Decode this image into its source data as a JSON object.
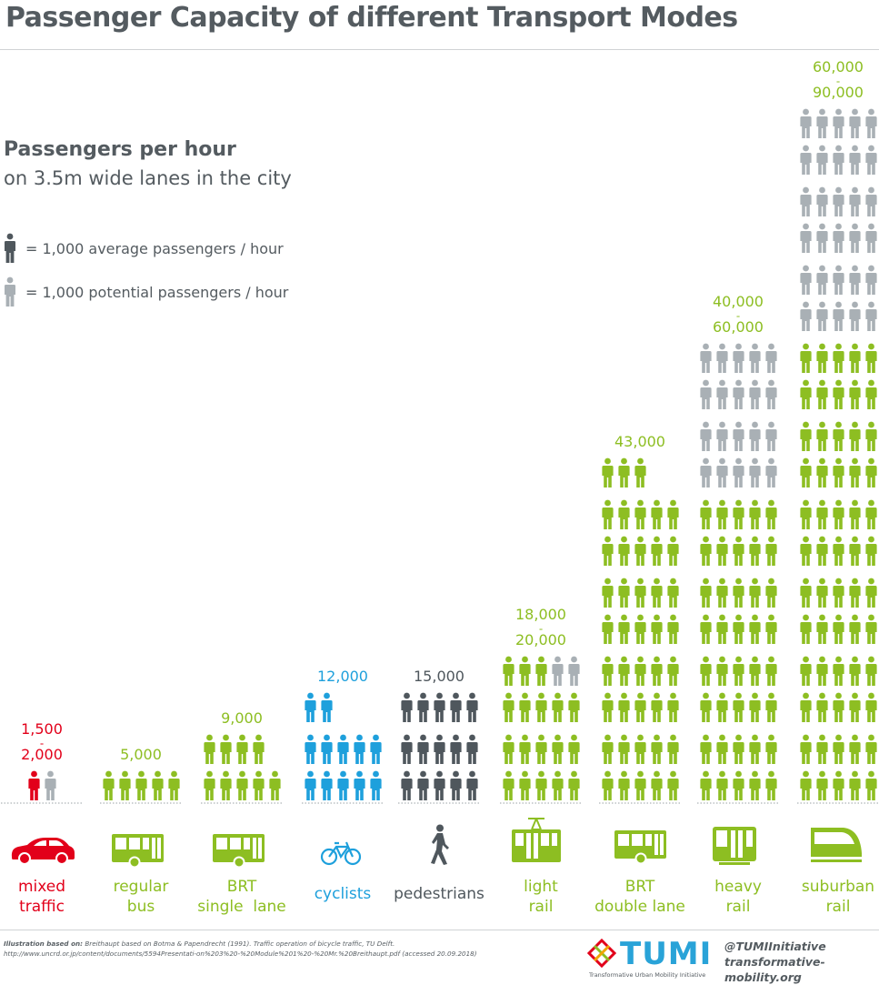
{
  "title": "Passenger Capacity of different Transport Modes",
  "subtitle_bold": "Passengers per hour",
  "subtitle": "on 3.5m wide lanes in the city",
  "legend": {
    "average": "= 1,000 average passengers / hour",
    "potential": "= 1,000 potential passengers / hour"
  },
  "colors": {
    "red": "#e2001a",
    "green": "#8dbe22",
    "blue": "#1ea0dc",
    "dark": "#4f575d",
    "gray": "#a9b0b5"
  },
  "chart_data": {
    "type": "pictogram",
    "unit": "1,000 passengers / hour",
    "categories": [
      {
        "id": "mixed-traffic",
        "label": [
          "mixed",
          "traffic"
        ],
        "value_label": [
          "1,500",
          "-",
          "2,000"
        ],
        "average": 1,
        "potential": 1,
        "color": "red",
        "icon": "car-icon"
      },
      {
        "id": "regular-bus",
        "label": [
          "regular",
          "bus"
        ],
        "value_label": [
          "5,000"
        ],
        "average": 5,
        "potential": 0,
        "color": "green",
        "icon": "bus-icon"
      },
      {
        "id": "brt-single-lane",
        "label": [
          "BRT",
          "single  lane"
        ],
        "value_label": [
          "9,000"
        ],
        "average": 9,
        "potential": 0,
        "color": "green",
        "icon": "bus-icon"
      },
      {
        "id": "cyclists",
        "label": [
          "cyclists"
        ],
        "value_label": [
          "12,000"
        ],
        "average": 12,
        "potential": 0,
        "color": "blue",
        "icon": "bicycle-icon"
      },
      {
        "id": "pedestrians",
        "label": [
          "pedestrians"
        ],
        "value_label": [
          "15,000"
        ],
        "average": 15,
        "potential": 0,
        "color": "dark",
        "icon": "pedestrian-icon"
      },
      {
        "id": "light-rail",
        "label": [
          "light",
          "rail"
        ],
        "value_label": [
          "18,000",
          "-",
          "20,000"
        ],
        "average": 18,
        "potential": 2,
        "color": "green",
        "icon": "tram-icon"
      },
      {
        "id": "brt-double-lane",
        "label": [
          "BRT",
          "double lane"
        ],
        "value_label": [
          "43,000"
        ],
        "average": 43,
        "potential": 0,
        "color": "green",
        "icon": "bus-icon"
      },
      {
        "id": "heavy-rail",
        "label": [
          "heavy",
          "rail"
        ],
        "value_label": [
          "40,000",
          "-",
          "60,000"
        ],
        "average": 40,
        "potential": 20,
        "color": "green",
        "icon": "metro-icon"
      },
      {
        "id": "suburban-rail",
        "label": [
          "suburban",
          "rail"
        ],
        "value_label": [
          "60,000",
          "-",
          "90,000"
        ],
        "average": 60,
        "potential": 30,
        "color": "green",
        "icon": "suburban-train-icon"
      }
    ]
  },
  "footer": {
    "source_label": "Illustration based on:",
    "source_text": "Breithaupt based on Botma & Papendrecht (1991). Traffic operation of bicycle traffic, TU Delft. http://www.uncrd.or.jp/content/documents/5594Presentati-on%203%20-%20Module%201%20-%20Mr.%20Breithaupt.pdf (accessed 20.09.2018)"
  },
  "brand": {
    "name": "TUMI",
    "tagline": "Transformative Urban Mobility Initiative",
    "handle": "@TUMIInitiative",
    "url": "transformative-mobility.org"
  }
}
